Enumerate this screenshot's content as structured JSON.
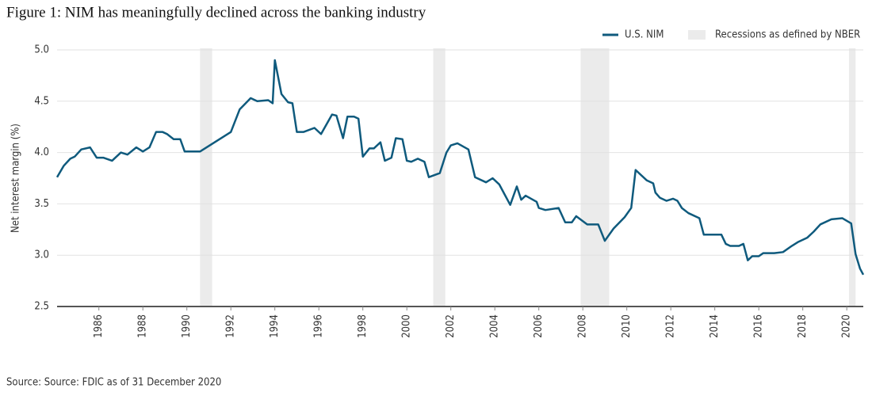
{
  "chart_data": {
    "type": "line",
    "title": "Figure 1:  NIM has meaningfully declined across the banking industry",
    "ylabel": "Net interest margin (%)",
    "source": "Source: Source: FDIC as of 31 December 2020",
    "xlim": [
      1984.1,
      2020.75
    ],
    "ylim": [
      2.5,
      5.0
    ],
    "xticks": [
      1986,
      1988,
      1990,
      1992,
      1994,
      1996,
      1998,
      2000,
      2002,
      2004,
      2006,
      2008,
      2010,
      2012,
      2014,
      2016,
      2018,
      2020
    ],
    "yticks": [
      2.5,
      {
        "value": 3.0,
        "label": "3.0"
      },
      3.5,
      {
        "value": 4.0,
        "label": "4.0"
      },
      4.5,
      {
        "value": 5.0,
        "label": "5.0"
      }
    ],
    "grid": true,
    "legend": "top-right",
    "recessions": {
      "name": "Recessions as defined by NBER",
      "color": "#ebebeb",
      "spans": [
        [
          1990.6,
          1991.15
        ],
        [
          2001.2,
          2001.75
        ],
        [
          2007.9,
          2009.2
        ],
        [
          2020.1,
          2020.4
        ]
      ]
    },
    "series": [
      {
        "name": "U.S. NIM",
        "color": "#0f5a7d",
        "x": [
          1984.1,
          1984.4,
          1984.7,
          1984.9,
          1985.2,
          1985.6,
          1985.9,
          1986.2,
          1986.6,
          1987.0,
          1987.3,
          1987.7,
          1988.0,
          1988.3,
          1988.6,
          1988.9,
          1989.1,
          1989.4,
          1989.7,
          1989.9,
          1990.4,
          1990.6,
          1992.0,
          1992.4,
          1992.9,
          1993.2,
          1993.7,
          1993.9,
          1994.0,
          1994.3,
          1994.6,
          1994.8,
          1995.0,
          1995.3,
          1995.8,
          1996.1,
          1996.6,
          1996.8,
          1997.1,
          1997.3,
          1997.6,
          1997.8,
          1998.0,
          1998.3,
          1998.5,
          1998.8,
          1999.0,
          1999.3,
          1999.5,
          1999.8,
          2000.0,
          2000.2,
          2000.5,
          2000.8,
          2001.0,
          2001.5,
          2001.8,
          2002.0,
          2002.3,
          2002.8,
          2003.1,
          2003.6,
          2003.9,
          2004.2,
          2004.7,
          2005.0,
          2005.2,
          2005.4,
          2005.9,
          2006.0,
          2006.3,
          2006.9,
          2007.2,
          2007.5,
          2007.7,
          2008.2,
          2008.7,
          2009.0,
          2009.4,
          2009.9,
          2010.2,
          2010.4,
          2010.9,
          2011.2,
          2011.3,
          2011.5,
          2011.8,
          2012.1,
          2012.3,
          2012.5,
          2012.8,
          2013.3,
          2013.5,
          2014.3,
          2014.5,
          2014.7,
          2015.1,
          2015.3,
          2015.5,
          2015.7,
          2016.0,
          2016.2,
          2016.7,
          2017.1,
          2017.5,
          2017.8,
          2018.2,
          2018.5,
          2018.8,
          2019.3,
          2019.8,
          2020.2,
          2020.4,
          2020.6,
          2020.75
        ],
        "values": [
          3.76,
          3.87,
          3.94,
          3.96,
          4.03,
          4.05,
          3.95,
          3.95,
          3.92,
          4.0,
          3.98,
          4.05,
          4.01,
          4.05,
          4.2,
          4.2,
          4.18,
          4.13,
          4.13,
          4.01,
          4.01,
          4.01,
          4.2,
          4.42,
          4.53,
          4.5,
          4.51,
          4.48,
          4.9,
          4.57,
          4.49,
          4.48,
          4.2,
          4.2,
          4.24,
          4.18,
          4.37,
          4.36,
          4.14,
          4.35,
          4.35,
          4.33,
          3.96,
          4.04,
          4.04,
          4.1,
          3.92,
          3.95,
          4.14,
          4.13,
          3.92,
          3.91,
          3.94,
          3.91,
          3.76,
          3.8,
          4.0,
          4.07,
          4.09,
          4.03,
          3.76,
          3.71,
          3.75,
          3.69,
          3.49,
          3.67,
          3.54,
          3.58,
          3.52,
          3.46,
          3.44,
          3.46,
          3.32,
          3.32,
          3.38,
          3.3,
          3.3,
          3.14,
          3.26,
          3.37,
          3.46,
          3.83,
          3.73,
          3.7,
          3.61,
          3.56,
          3.53,
          3.55,
          3.53,
          3.46,
          3.41,
          3.36,
          3.2,
          3.2,
          3.11,
          3.09,
          3.09,
          3.11,
          2.95,
          2.99,
          2.99,
          3.02,
          3.02,
          3.03,
          3.09,
          3.13,
          3.17,
          3.23,
          3.3,
          3.35,
          3.36,
          3.31,
          3.01,
          2.87,
          2.81
        ]
      }
    ]
  }
}
